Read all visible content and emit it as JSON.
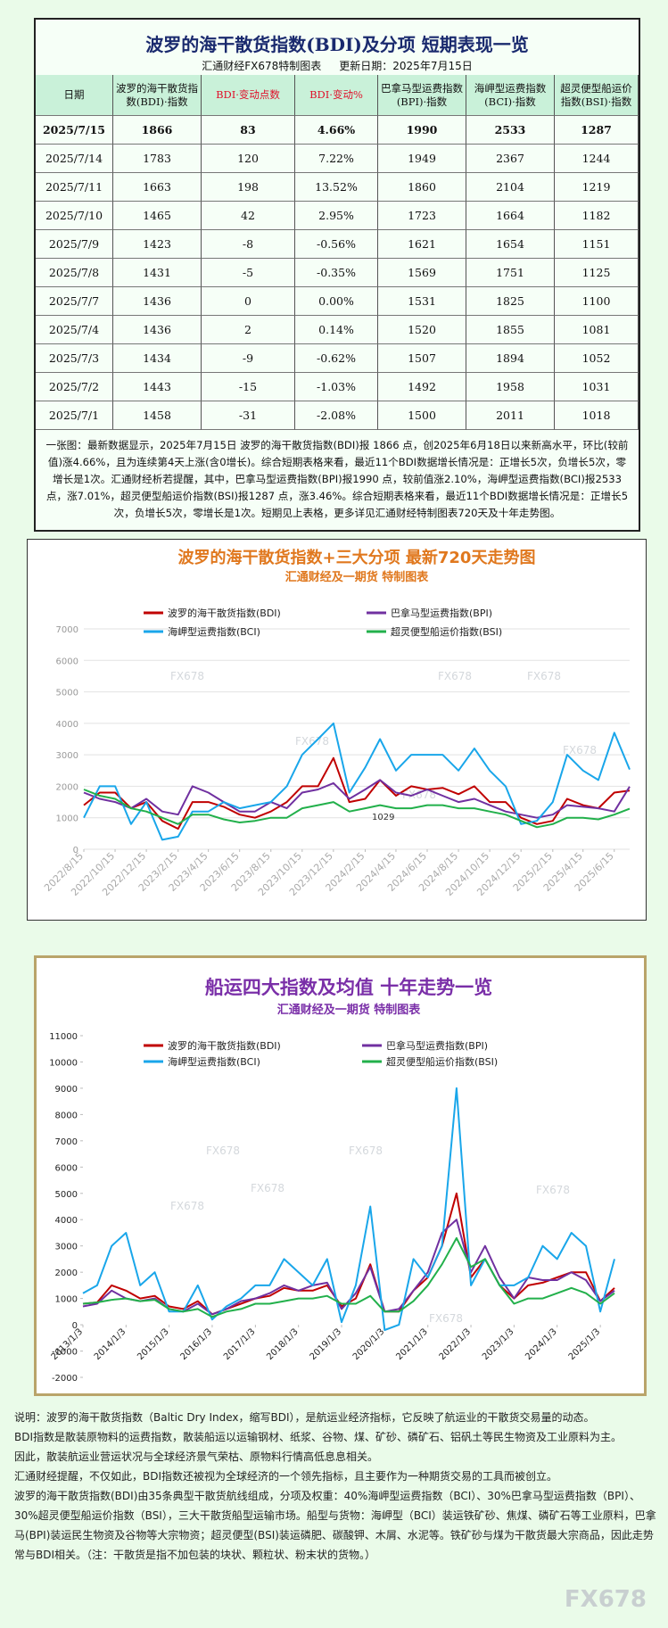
{
  "header": {
    "title": "波罗的海干散货指数(BDI)及分项 短期表现一览",
    "source": "汇通财经FX678特制图表",
    "updated": "更新日期：2025年7月15日"
  },
  "table": {
    "columns": [
      "日期",
      "波罗的海干散货指数(BDI)·指数",
      "BDI·变动点数",
      "BDI·变动%",
      "巴拿马型运费指数(BPI)·指数",
      "海岬型运费指数(BCI)·指数",
      "超灵便型船运价指数(BSI)·指数"
    ],
    "rows": [
      [
        "2025/7/15",
        "1866",
        "83",
        "4.66%",
        "1990",
        "2533",
        "1287"
      ],
      [
        "2025/7/14",
        "1783",
        "120",
        "7.22%",
        "1949",
        "2367",
        "1244"
      ],
      [
        "2025/7/11",
        "1663",
        "198",
        "13.52%",
        "1860",
        "2104",
        "1219"
      ],
      [
        "2025/7/10",
        "1465",
        "42",
        "2.95%",
        "1723",
        "1664",
        "1182"
      ],
      [
        "2025/7/9",
        "1423",
        "-8",
        "-0.56%",
        "1621",
        "1654",
        "1151"
      ],
      [
        "2025/7/8",
        "1431",
        "-5",
        "-0.35%",
        "1569",
        "1751",
        "1125"
      ],
      [
        "2025/7/7",
        "1436",
        "0",
        "0.00%",
        "1531",
        "1825",
        "1100"
      ],
      [
        "2025/7/4",
        "1436",
        "2",
        "0.14%",
        "1520",
        "1855",
        "1081"
      ],
      [
        "2025/7/3",
        "1434",
        "-9",
        "-0.62%",
        "1507",
        "1894",
        "1052"
      ],
      [
        "2025/7/2",
        "1443",
        "-15",
        "-1.03%",
        "1492",
        "1958",
        "1031"
      ],
      [
        "2025/7/1",
        "1458",
        "-31",
        "-2.08%",
        "1500",
        "2011",
        "1018"
      ]
    ]
  },
  "summary": "一张图：最新数据显示，2025年7月15日 波罗的海干散货指数(BDI)报 1866 点，创2025年6月18日以来新高水平，环比(较前值)涨4.66%，且为连续第4天上涨(含0增长)。综合短期表格来看，最近11个BDI数据增长情况是：正增长5次，负增长5次，零增长是1次。汇通财经析若提醒，其中，巴拿马型运费指数(BPI)报1990 点，较前值涨2.10%，海岬型运费指数(BCI)报2533 点，涨7.01%，超灵便型船运价指数(BSI)报1287 点，涨3.46%。综合短期表格来看，最近11个BDI数据增长情况是：正增长5次，负增长5次，零增长是1次。短期见上表格，更多详见汇通财经特制图表720天及十年走势图。",
  "watermark": "FX678",
  "chart_data": [
    {
      "type": "line",
      "title": "波罗的海干散货指数+三大分项  最新720天走势图",
      "subtitle": "汇通财经及一期货  特制图表",
      "x": [
        "2022/8/15",
        "2022/9/15",
        "2022/10/15",
        "2022/11/15",
        "2022/12/15",
        "2023/1/15",
        "2023/2/15",
        "2023/3/15",
        "2023/4/15",
        "2023/5/15",
        "2023/6/15",
        "2023/7/15",
        "2023/8/15",
        "2023/9/15",
        "2023/10/15",
        "2023/11/15",
        "2023/12/15",
        "2024/1/15",
        "2024/2/15",
        "2024/3/15",
        "2024/4/15",
        "2024/5/15",
        "2024/6/15",
        "2024/7/15",
        "2024/8/15",
        "2024/9/15",
        "2024/10/15",
        "2024/11/15",
        "2024/12/15",
        "2025/1/15",
        "2025/2/15",
        "2025/3/15",
        "2025/4/15",
        "2025/5/15",
        "2025/6/15",
        "2025/7/15"
      ],
      "series": [
        {
          "name": "波罗的海干散货指数(BDI)",
          "color": "#c00000",
          "values": [
            1400,
            1800,
            1800,
            1300,
            1500,
            900,
            650,
            1500,
            1500,
            1350,
            1100,
            1000,
            1200,
            1500,
            2000,
            2000,
            2900,
            1500,
            1600,
            2200,
            1700,
            2000,
            1900,
            1950,
            1750,
            2000,
            1500,
            1500,
            1000,
            800,
            900,
            1600,
            1400,
            1300,
            1800,
            1866
          ]
        },
        {
          "name": "巴拿马型运费指数(BPI)",
          "color": "#7030a0",
          "values": [
            1800,
            1600,
            1500,
            1300,
            1600,
            1200,
            1100,
            2000,
            1800,
            1500,
            1200,
            1200,
            1500,
            1300,
            1800,
            1900,
            2100,
            1600,
            1900,
            2200,
            1800,
            1700,
            1900,
            1700,
            1500,
            1600,
            1400,
            1200,
            1100,
            1000,
            1100,
            1400,
            1350,
            1300,
            1200,
            1990
          ]
        },
        {
          "name": "海岬型运费指数(BCI)",
          "color": "#19a6ea",
          "values": [
            1000,
            2000,
            2000,
            800,
            1500,
            300,
            400,
            1200,
            1200,
            1500,
            1300,
            1400,
            1500,
            2000,
            3000,
            3500,
            4000,
            1800,
            2600,
            3500,
            2500,
            3000,
            3000,
            3000,
            2500,
            3200,
            2500,
            2000,
            800,
            900,
            1500,
            3000,
            2500,
            2200,
            3700,
            2533
          ]
        },
        {
          "name": "超灵便型船运价指数(BSI)",
          "color": "#22b04b",
          "values": [
            1900,
            1700,
            1600,
            1300,
            1200,
            1000,
            800,
            1100,
            1100,
            950,
            850,
            900,
            1000,
            1000,
            1300,
            1400,
            1500,
            1200,
            1300,
            1400,
            1300,
            1300,
            1400,
            1400,
            1300,
            1300,
            1200,
            1100,
            900,
            700,
            800,
            1000,
            1000,
            950,
            1100,
            1287
          ]
        }
      ],
      "xticks": [
        "2022/8/15",
        "2022/10/15",
        "2022/12/15",
        "2023/2/15",
        "2023/4/15",
        "2023/6/15",
        "2023/8/15",
        "2023/10/15",
        "2023/12/15",
        "2024/2/15",
        "2024/4/15",
        "2024/6/15",
        "2024/8/15",
        "2024/10/15",
        "2024/12/15",
        "2025/2/15",
        "2025/4/15",
        "2025/6/15"
      ],
      "ylim": [
        0,
        7000
      ],
      "yticks": [
        0,
        1000,
        2000,
        3000,
        4000,
        5000,
        6000,
        7000
      ],
      "grid": true,
      "annotations": [
        "1029"
      ]
    },
    {
      "type": "line",
      "title": "船运四大指数及均值 十年走势一览",
      "subtitle": "汇通财经及一期货 特制图表",
      "x": [
        "2013/1/3",
        "2013/5/3",
        "2013/9/3",
        "2014/1/3",
        "2014/5/3",
        "2014/9/3",
        "2015/1/3",
        "2015/5/3",
        "2015/9/3",
        "2016/1/3",
        "2016/5/3",
        "2016/9/3",
        "2017/1/3",
        "2017/5/3",
        "2017/9/3",
        "2018/1/3",
        "2018/5/3",
        "2018/9/3",
        "2019/1/3",
        "2019/5/3",
        "2019/9/3",
        "2020/1/3",
        "2020/5/3",
        "2020/9/3",
        "2021/1/3",
        "2021/5/3",
        "2021/9/3",
        "2022/1/3",
        "2022/5/3",
        "2022/9/3",
        "2023/1/3",
        "2023/5/3",
        "2023/9/3",
        "2024/1/3",
        "2024/5/3",
        "2024/9/3",
        "2025/1/3",
        "2025/5/3"
      ],
      "series": [
        {
          "name": "波罗的海干散货指数(BDI)",
          "color": "#c00000",
          "values": [
            800,
            850,
            1500,
            1300,
            1000,
            1100,
            700,
            600,
            900,
            400,
            600,
            800,
            1000,
            1100,
            1400,
            1300,
            1300,
            1500,
            700,
            1000,
            2300,
            500,
            500,
            1300,
            1800,
            3000,
            5000,
            1800,
            2500,
            1500,
            1000,
            1500,
            1600,
            1800,
            2000,
            2000,
            900,
            1400
          ]
        },
        {
          "name": "巴拿马型运费指数(BPI)",
          "color": "#7030a0",
          "values": [
            700,
            800,
            1300,
            1000,
            900,
            1000,
            600,
            500,
            800,
            400,
            600,
            900,
            1000,
            1200,
            1500,
            1300,
            1500,
            1600,
            600,
            1200,
            2200,
            500,
            600,
            1300,
            2000,
            3500,
            4000,
            2000,
            3000,
            1800,
            1000,
            1800,
            1700,
            1700,
            2000,
            1700,
            900,
            1300
          ]
        },
        {
          "name": "海岬型运费指数(BCI)",
          "color": "#19a6ea",
          "values": [
            1200,
            1500,
            3000,
            3500,
            1500,
            2000,
            500,
            500,
            1500,
            200,
            700,
            1000,
            1500,
            1500,
            2500,
            2000,
            1500,
            2500,
            100,
            1500,
            4500,
            -200,
            0,
            2500,
            1800,
            3000,
            9000,
            1500,
            2500,
            1500,
            1500,
            1800,
            3000,
            2500,
            3500,
            3000,
            500,
            2500
          ]
        },
        {
          "name": "超灵便型船运价指数(BSI)",
          "color": "#22b04b",
          "values": [
            800,
            850,
            950,
            1000,
            900,
            950,
            600,
            500,
            600,
            300,
            500,
            600,
            800,
            800,
            900,
            1000,
            1000,
            1100,
            800,
            800,
            1100,
            500,
            500,
            900,
            1500,
            2300,
            3300,
            2200,
            2500,
            1500,
            800,
            1000,
            1000,
            1200,
            1400,
            1200,
            800,
            1200
          ]
        }
      ],
      "xticks": [
        "2013/1/3",
        "2014/1/3",
        "2015/1/3",
        "2016/1/3",
        "2017/1/3",
        "2018/1/3",
        "2019/1/3",
        "2020/1/3",
        "2021/1/3",
        "2022/1/3",
        "2023/1/3",
        "2024/1/3",
        "2025/1/3"
      ],
      "ylim": [
        -2000,
        11000
      ],
      "yticks": [
        -2000,
        -1000,
        0,
        1000,
        2000,
        3000,
        4000,
        5000,
        6000,
        7000,
        8000,
        9000,
        10000,
        11000
      ],
      "grid": false
    }
  ],
  "notes": [
    "说明：波罗的海干散货指数（Baltic Dry Index，缩写BDI），是航运业经济指标，它反映了航运业的干散货交易量的动态。",
    "BDI指数是散装原物料的运费指数，散装船运以运输钢材、纸浆、谷物、煤、矿砂、磷矿石、铝矾土等民生物资及工业原料为主。",
    "因此，散装航运业营运状况与全球经济景气荣枯、原物料行情高低息息相关。",
    "汇通财经提醒，不仅如此，BDI指数还被视为全球经济的一个领先指标，且主要作为一种期货交易的工具而被创立。",
    "波罗的海干散货指数(BDI)由35条典型干散货航线组成，分项及权重：40%海岬型运费指数（BCI）、30%巴拿马型运费指数（BPI）、30%超灵便型船运价指数（BSI），三大干散货船型运输市场。船型与货物：海岬型（BCI）装运铁矿砂、焦煤、磷矿石等工业原料，巴拿马(BPI)装运民生物资及谷物等大宗物资；超灵便型(BSI)装运磷肥、碳酸钾、木屑、水泥等。铁矿砂与煤为干散货最大宗商品，因此走势常与BDI相关。（注：干散货是指不加包装的块状、颗粒状、粉末状的货物。）"
  ]
}
